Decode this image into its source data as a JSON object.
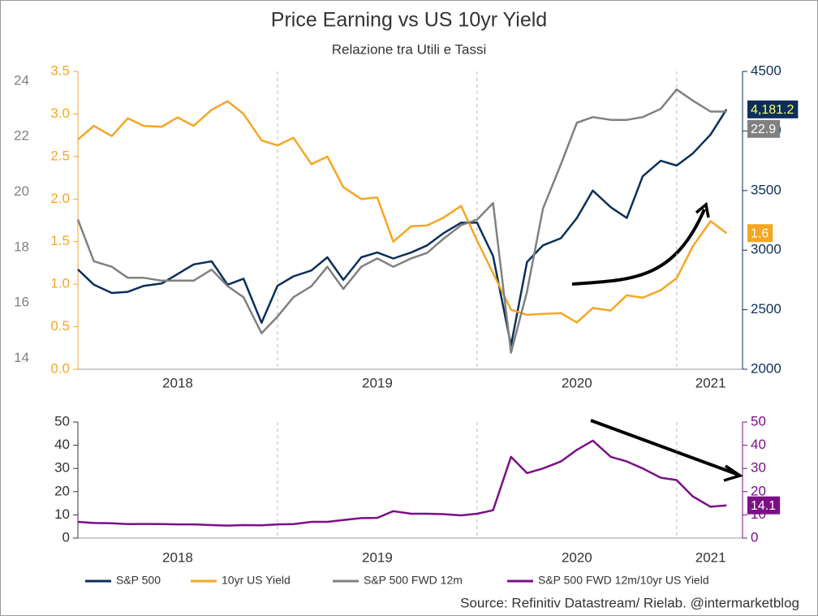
{
  "chart_data": [
    {
      "type": "line",
      "title": "Price Earning vs US 10yr Yield",
      "subtitle": "Relazione tra Utili e Tassi",
      "x": [
        2018.0,
        2018.08,
        2018.17,
        2018.25,
        2018.33,
        2018.42,
        2018.5,
        2018.58,
        2018.67,
        2018.75,
        2018.83,
        2018.92,
        2019.0,
        2019.08,
        2019.17,
        2019.25,
        2019.33,
        2019.42,
        2019.5,
        2019.58,
        2019.67,
        2019.75,
        2019.83,
        2019.92,
        2020.0,
        2020.08,
        2020.17,
        2020.25,
        2020.33,
        2020.42,
        2020.5,
        2020.58,
        2020.67,
        2020.75,
        2020.83,
        2020.92,
        2021.0,
        2021.08,
        2021.17,
        2021.25
      ],
      "xlim": [
        2018.0,
        2021.33
      ],
      "xticks": [
        {
          "value": 2018.5,
          "label": "2018"
        },
        {
          "value": 2019.5,
          "label": "2019"
        },
        {
          "value": 2020.5,
          "label": "2020"
        },
        {
          "value": 2021.17,
          "label": "2021"
        }
      ],
      "xgrid": [
        2019,
        2020,
        2021
      ],
      "ylim": [
        0,
        3.5
      ],
      "ycolor": "#f5a623",
      "yticks": [
        {
          "value": 0,
          "label": "0.0"
        },
        {
          "value": 0.5,
          "label": "0.5"
        },
        {
          "value": 1,
          "label": "1.0"
        },
        {
          "value": 1.5,
          "label": "1.5"
        },
        {
          "value": 2,
          "label": "2.0"
        },
        {
          "value": 2.5,
          "label": "2.5"
        },
        {
          "value": 3,
          "label": "3.0"
        },
        {
          "value": 3.5,
          "label": "3.5"
        }
      ],
      "y3lim": [
        13.6,
        24.35
      ],
      "y3color": "#808080",
      "y3ticks": [
        14,
        16,
        18,
        20,
        22,
        24
      ],
      "y2lim": [
        2000,
        4500
      ],
      "y2color": "#0b2f5a",
      "y2ticks": [
        2000,
        2500,
        3000,
        3500,
        4000,
        4500
      ],
      "series": [
        {
          "name": "S&P 500",
          "color": "#0b2f5a",
          "axis": "y2",
          "end_label_text": "#ffff66",
          "values": [
            2838,
            2710,
            2640,
            2650,
            2700,
            2720,
            2800,
            2880,
            2906,
            2710,
            2760,
            2390,
            2700,
            2780,
            2830,
            2940,
            2750,
            2940,
            2980,
            2930,
            2980,
            3040,
            3140,
            3230,
            3230,
            2950,
            2200,
            2900,
            3040,
            3100,
            3270,
            3500,
            3360,
            3270,
            3620,
            3750,
            3710,
            3810,
            3970,
            4181.2
          ],
          "value_labels": [
            null,
            null,
            null,
            null,
            null,
            null,
            null,
            null,
            null,
            null,
            null,
            null,
            null,
            null,
            null,
            null,
            null,
            null,
            null,
            null,
            null,
            null,
            null,
            null,
            null,
            null,
            null,
            null,
            null,
            null,
            null,
            null,
            null,
            null,
            null,
            null,
            null,
            null,
            null,
            "4,181.2"
          ]
        },
        {
          "name": "10yr US Yield",
          "color": "#f5a623",
          "axis": "y",
          "values": [
            2.7,
            2.86,
            2.74,
            2.95,
            2.86,
            2.85,
            2.96,
            2.86,
            3.05,
            3.15,
            3.0,
            2.69,
            2.63,
            2.72,
            2.41,
            2.5,
            2.14,
            2.0,
            2.02,
            1.5,
            1.68,
            1.69,
            1.78,
            1.92,
            1.51,
            1.13,
            0.7,
            0.64,
            0.65,
            0.66,
            0.55,
            0.72,
            0.69,
            0.87,
            0.84,
            0.93,
            1.07,
            1.44,
            1.74,
            1.6
          ]
        },
        {
          "name": "S&P 500 FWD 12m",
          "color": "#808080",
          "axis": "y3",
          "values": [
            19.0,
            17.5,
            17.3,
            16.9,
            16.9,
            16.8,
            16.8,
            16.8,
            17.2,
            16.6,
            16.2,
            14.9,
            15.5,
            16.2,
            16.6,
            17.3,
            16.5,
            17.3,
            17.6,
            17.3,
            17.6,
            17.8,
            18.3,
            18.8,
            19.0,
            19.6,
            14.2,
            16.4,
            19.4,
            21.0,
            22.5,
            22.7,
            22.6,
            22.6,
            22.7,
            23.0,
            23.7,
            23.3,
            22.9,
            22.9
          ]
        }
      ]
    },
    {
      "type": "line",
      "x": [
        2018.0,
        2018.08,
        2018.17,
        2018.25,
        2018.33,
        2018.42,
        2018.5,
        2018.58,
        2018.67,
        2018.75,
        2018.83,
        2018.92,
        2019.0,
        2019.08,
        2019.17,
        2019.25,
        2019.33,
        2019.42,
        2019.5,
        2019.58,
        2019.67,
        2019.75,
        2019.83,
        2019.92,
        2020.0,
        2020.08,
        2020.17,
        2020.25,
        2020.33,
        2020.42,
        2020.5,
        2020.58,
        2020.67,
        2020.75,
        2020.83,
        2020.92,
        2021.0,
        2021.08,
        2021.17,
        2021.25
      ],
      "xlim": [
        2018.0,
        2021.33
      ],
      "xticks": [
        {
          "value": 2018.5,
          "label": "2018"
        },
        {
          "value": 2019.5,
          "label": "2019"
        },
        {
          "value": 2020.5,
          "label": "2020"
        },
        {
          "value": 2021.17,
          "label": "2021"
        }
      ],
      "xgrid": [
        2019,
        2020,
        2021
      ],
      "ylim": [
        0,
        50
      ],
      "ycolor": "#333333",
      "yticks": [
        0,
        10,
        20,
        30,
        40,
        50
      ],
      "y2lim": [
        0,
        50
      ],
      "y2color": "#7b0f86",
      "y2ticks": [
        0,
        10,
        20,
        30,
        40,
        50
      ],
      "series": [
        {
          "name": "S&P 500 FWD 12m/10yr US Yield",
          "color": "#7b0f86",
          "axis": "y2",
          "values": [
            7.0,
            6.5,
            6.4,
            6.0,
            6.1,
            6.0,
            5.9,
            5.9,
            5.6,
            5.4,
            5.6,
            5.5,
            5.9,
            6.0,
            7.0,
            7.0,
            7.8,
            8.6,
            8.7,
            11.6,
            10.5,
            10.5,
            10.3,
            9.8,
            10.5,
            12.0,
            35.0,
            28.0,
            30.0,
            33.0,
            38.0,
            42.0,
            35.0,
            33.0,
            30.0,
            26.0,
            25.0,
            18.0,
            13.5,
            14.1
          ]
        }
      ]
    }
  ],
  "source": "Source: Refinitiv Datastream/ Rielab. @intermarketblog"
}
